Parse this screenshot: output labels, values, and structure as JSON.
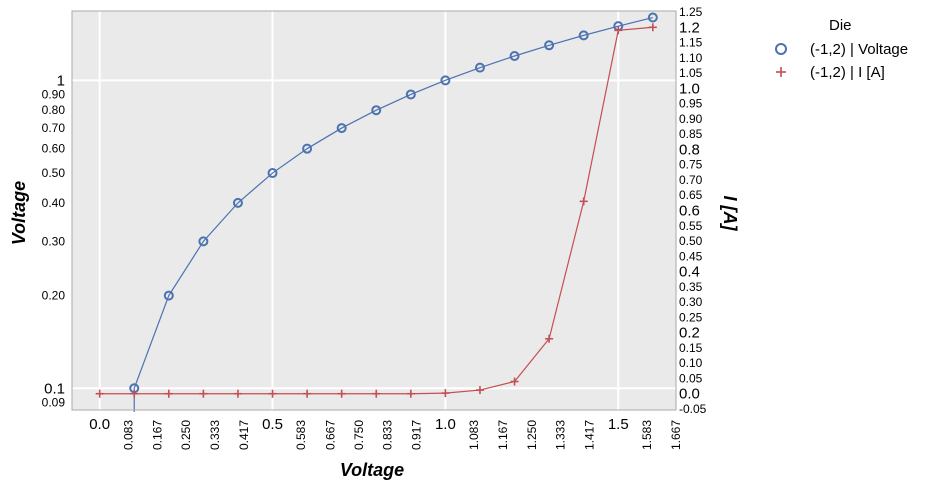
{
  "chart_data": {
    "type": "line",
    "x_label": "Voltage",
    "y_left_label": "Voltage",
    "y_right_label": "I [A]",
    "x_scale": "linear",
    "y_left_scale": "log",
    "y_right_scale": "linear",
    "x_range": [
      -0.08,
      1.667
    ],
    "y_left_range": [
      0.085,
      1.68
    ],
    "y_right_range": [
      -0.0533,
      1.2533
    ],
    "grid": true,
    "legend_position": "right",
    "legend_title": "Die",
    "x_major_ticks": [
      "0.0",
      "0.5",
      "1.0",
      "1.5"
    ],
    "x_minor_ticks": [
      "0.083",
      "0.167",
      "0.250",
      "0.333",
      "0.417",
      "0.583",
      "0.667",
      "0.750",
      "0.833",
      "0.917",
      "1.083",
      "1.167",
      "1.250",
      "1.333",
      "1.417",
      "1.583",
      "1.667"
    ],
    "y_left_ticks": [
      "1",
      "0.90",
      "0.80",
      "0.70",
      "0.60",
      "0.50",
      "0.40",
      "0.30",
      "0.20",
      "0.1",
      "0.09"
    ],
    "y_right_ticks": [
      "1.25",
      "1.2",
      "1.15",
      "1.10",
      "1.05",
      "1.0",
      "0.95",
      "0.90",
      "0.85",
      "0.8",
      "0.75",
      "0.70",
      "0.65",
      "0.6",
      "0.55",
      "0.50",
      "0.45",
      "0.4",
      "0.35",
      "0.30",
      "0.25",
      "0.2",
      "0.15",
      "0.10",
      "0.05",
      "0.0",
      "-0.05"
    ],
    "series": [
      {
        "name": "(-1,2) | Voltage",
        "axis": "left",
        "marker": "circle",
        "color": "#4c72b0",
        "x": [
          0.1,
          0.2,
          0.3,
          0.4,
          0.5,
          0.6,
          0.7,
          0.8,
          0.9,
          1.0,
          1.1,
          1.2,
          1.3,
          1.4,
          1.5,
          1.6
        ],
        "y": [
          0.1,
          0.2,
          0.3,
          0.4,
          0.5,
          0.6,
          0.7,
          0.8,
          0.9,
          1.0,
          1.1,
          1.2,
          1.3,
          1.4,
          1.5,
          1.6
        ]
      },
      {
        "name": "(-1,2) | I [A]",
        "axis": "right",
        "marker": "plus",
        "color": "#c44e52",
        "x": [
          0.0,
          0.1,
          0.2,
          0.3,
          0.4,
          0.5,
          0.6,
          0.7,
          0.8,
          0.9,
          1.0,
          1.1,
          1.2,
          1.3,
          1.4,
          1.5,
          1.6
        ],
        "y": [
          0.0,
          0.0,
          0.0,
          0.0,
          0.0,
          0.0,
          0.0,
          0.0,
          0.0,
          0.0,
          0.002,
          0.012,
          0.04,
          0.18,
          0.63,
          1.19,
          1.2
        ]
      }
    ]
  }
}
